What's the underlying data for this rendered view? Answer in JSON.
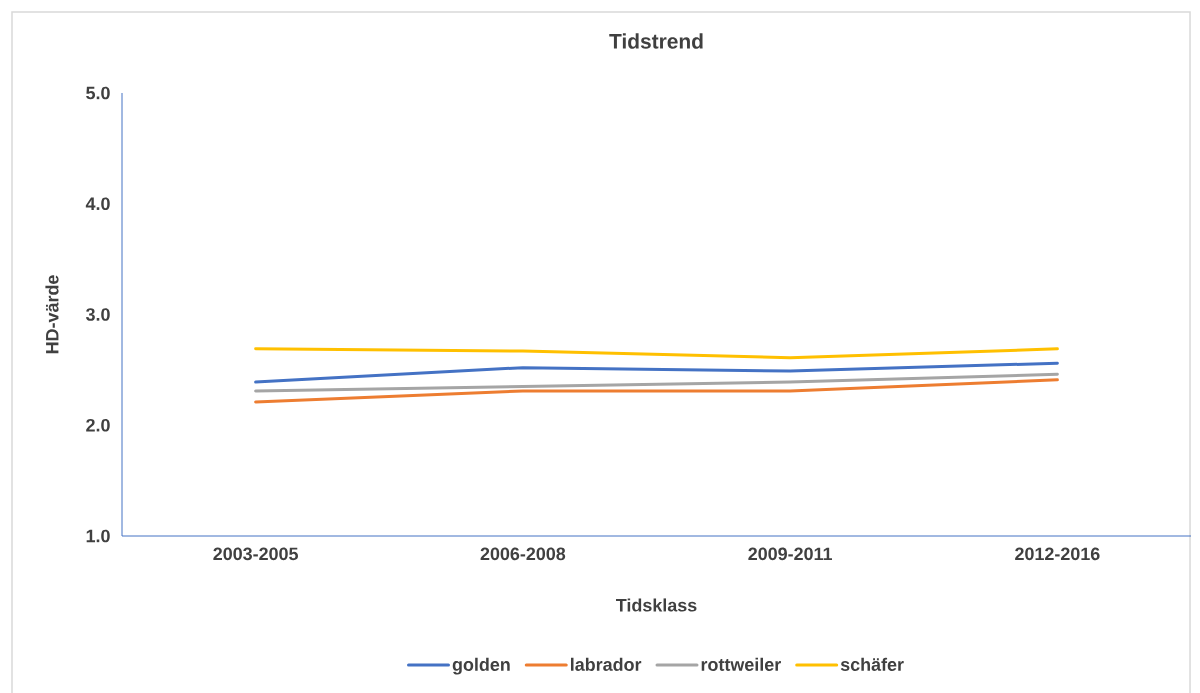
{
  "chart_data": {
    "type": "line",
    "title": "Tidstrend",
    "xlabel": "Tidsklass",
    "ylabel": "HD-värde",
    "categories": [
      "2003-2005",
      "2006-2008",
      "2009-2011",
      "2012-2016"
    ],
    "series": [
      {
        "name": "golden",
        "color": "#4472c4",
        "values": [
          2.39,
          2.52,
          2.49,
          2.56
        ]
      },
      {
        "name": "labrador",
        "color": "#ed7d31",
        "values": [
          2.21,
          2.31,
          2.31,
          2.41
        ]
      },
      {
        "name": "rottweiler",
        "color": "#a5a5a5",
        "values": [
          2.31,
          2.35,
          2.39,
          2.46
        ]
      },
      {
        "name": "schäfer",
        "color": "#ffc000",
        "values": [
          2.69,
          2.67,
          2.61,
          2.69
        ]
      }
    ],
    "ylim": [
      1,
      5
    ],
    "yticks": [
      {
        "value": 1,
        "label": "1.0"
      },
      {
        "value": 2,
        "label": "2.0"
      },
      {
        "value": 3,
        "label": "3.0"
      },
      {
        "value": 4,
        "label": "4.0"
      },
      {
        "value": 5,
        "label": "5.0"
      }
    ],
    "grid": false,
    "legend": "bottom",
    "marker": "none",
    "line_style": "solid"
  }
}
